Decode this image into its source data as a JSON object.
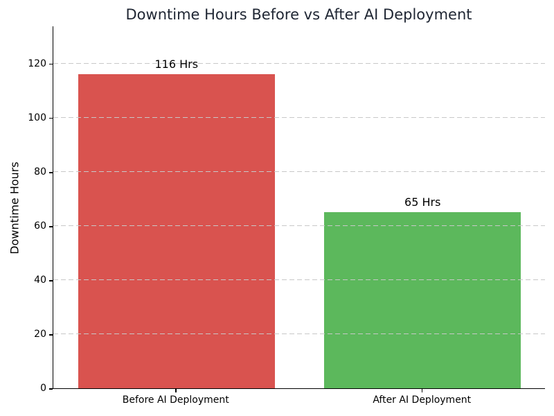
{
  "chart_data": {
    "type": "bar",
    "title": "Downtime Hours Before vs After AI Deployment",
    "xlabel": "",
    "ylabel": "Downtime Hours",
    "categories": [
      "Before AI Deployment",
      "After AI Deployment"
    ],
    "values": [
      116,
      65
    ],
    "bar_value_labels": [
      "116 Hrs",
      "65 Hrs"
    ],
    "bar_colors": [
      "#d9534f",
      "#5cb85c"
    ],
    "yticks": [
      0,
      20,
      40,
      60,
      80,
      100,
      120
    ],
    "ylim": [
      0,
      134
    ],
    "bar_width_fraction": 0.8,
    "grid": "horizontal-dashed-over-bars",
    "grid_color": "#c8c8c8",
    "title_color": "#1f2633",
    "axis_color": "#000000",
    "legend_position": "none"
  }
}
